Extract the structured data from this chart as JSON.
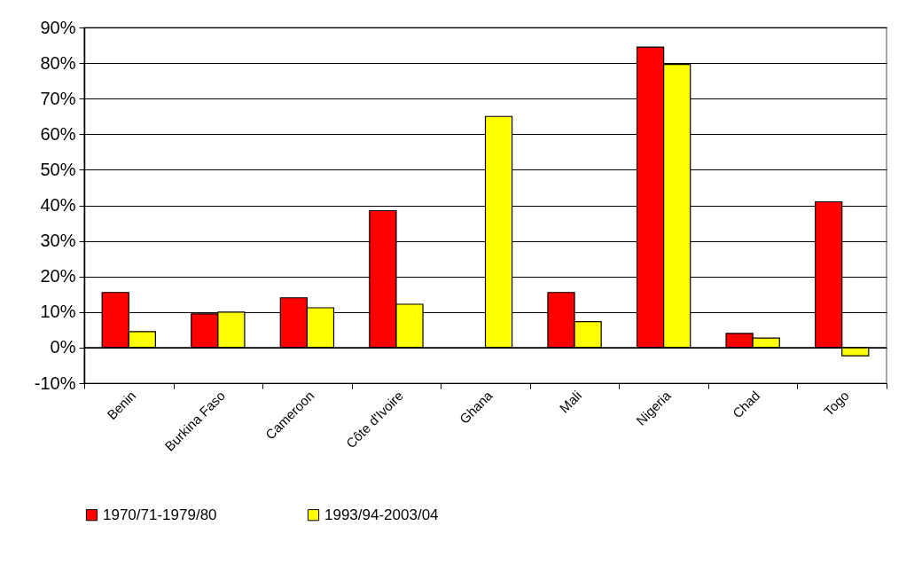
{
  "chart_data": {
    "type": "bar",
    "categories": [
      "Benin",
      "Burkina Faso",
      "Cameroon",
      "Côte d'Ivoire",
      "Ghana",
      "Mali",
      "Nigeria",
      "Chad",
      "Togo"
    ],
    "series": [
      {
        "name": "1970/71-1979/80",
        "color": "#ff0000",
        "values": [
          15.5,
          9.5,
          14,
          38.5,
          null,
          15.5,
          84.5,
          4,
          41
        ]
      },
      {
        "name": "1993/94-2003/04",
        "color": "#ffff00",
        "values": [
          4.5,
          10,
          11.2,
          12.2,
          65,
          7.3,
          79.6,
          2.7,
          -2.3
        ]
      }
    ],
    "ylim": [
      -10,
      90
    ],
    "yticks": [
      {
        "value": -10,
        "label": "-10%"
      },
      {
        "value": 0,
        "label": "0%"
      },
      {
        "value": 10,
        "label": "10%"
      },
      {
        "value": 20,
        "label": "20%"
      },
      {
        "value": 30,
        "label": "30%"
      },
      {
        "value": 40,
        "label": "40%"
      },
      {
        "value": 50,
        "label": "50%"
      },
      {
        "value": 60,
        "label": "60%"
      },
      {
        "value": 70,
        "label": "70%"
      },
      {
        "value": 80,
        "label": "80%"
      },
      {
        "value": 90,
        "label": "90%"
      }
    ],
    "grid": "y",
    "legend": "bottom"
  }
}
